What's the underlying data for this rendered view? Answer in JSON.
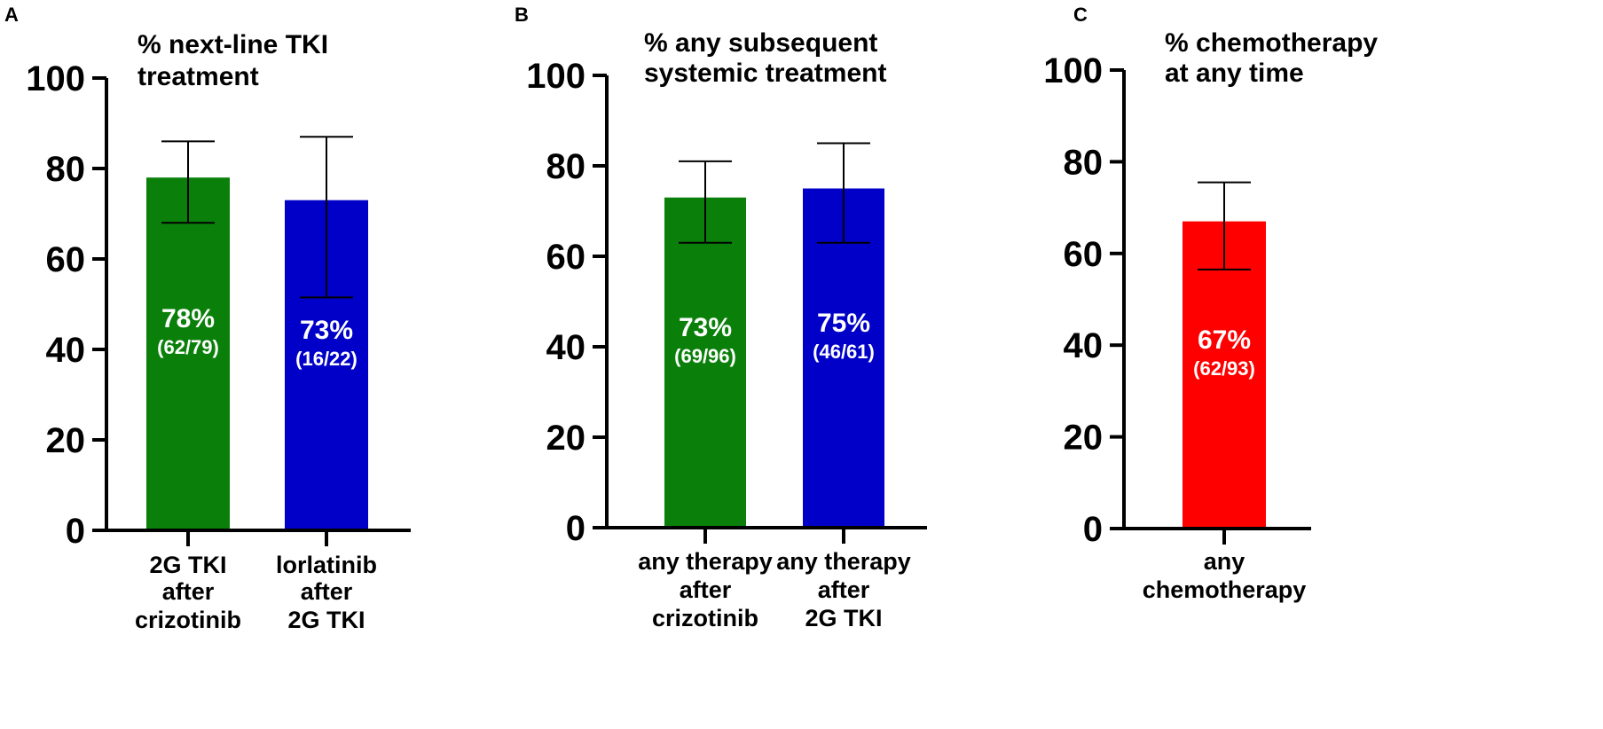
{
  "chart_data": [
    {
      "panel": "A",
      "type": "bar",
      "title": [
        "% next-line TKI",
        "treatment"
      ],
      "categories": [
        [
          "2G TKI",
          "after",
          "crizotinib"
        ],
        [
          "lorlatinib",
          "after",
          "2G TKI"
        ]
      ],
      "values": [
        78,
        73
      ],
      "error_low": [
        68,
        51.5
      ],
      "error_high": [
        86,
        87
      ],
      "bar_labels": [
        [
          "78%",
          "(62/79)"
        ],
        [
          "73%",
          "(16/22)"
        ]
      ],
      "colors": [
        "#0a800a",
        "#0000c8"
      ],
      "ylim": [
        0,
        100
      ],
      "yticks": [
        0,
        20,
        40,
        60,
        80,
        100
      ],
      "ytick_labels": [
        "0",
        "20",
        "40",
        "60",
        "80",
        "100"
      ],
      "xlabel": "",
      "ylabel": "",
      "grid": false
    },
    {
      "panel": "B",
      "type": "bar",
      "title": [
        "% any subsequent",
        "systemic treatment"
      ],
      "categories": [
        [
          "any therapy",
          "after",
          "crizotinib"
        ],
        [
          "any therapy",
          "after",
          "2G TKI"
        ]
      ],
      "values": [
        73,
        75
      ],
      "error_low": [
        63,
        63
      ],
      "error_high": [
        81,
        85
      ],
      "bar_labels": [
        [
          "73%",
          "(69/96)"
        ],
        [
          "75%",
          "(46/61)"
        ]
      ],
      "colors": [
        "#0a800a",
        "#0000c8"
      ],
      "ylim": [
        0,
        100
      ],
      "yticks": [
        0,
        20,
        40,
        60,
        80,
        100
      ],
      "ytick_labels": [
        "0",
        "20",
        "40",
        "60",
        "80",
        "100"
      ],
      "xlabel": "",
      "ylabel": "",
      "grid": false
    },
    {
      "panel": "C",
      "type": "bar",
      "title": [
        "% chemotherapy",
        "at any time"
      ],
      "categories": [
        [
          "any",
          "chemotherapy"
        ]
      ],
      "values": [
        67
      ],
      "error_low": [
        56.5
      ],
      "error_high": [
        75.5
      ],
      "bar_labels": [
        [
          "67%",
          "(62/93)"
        ]
      ],
      "colors": [
        "#ff0000"
      ],
      "ylim": [
        0,
        100
      ],
      "yticks": [
        0,
        20,
        40,
        60,
        80,
        100
      ],
      "ytick_labels": [
        "0",
        "20",
        "40",
        "60",
        "80",
        "100"
      ],
      "xlabel": "",
      "ylabel": "",
      "grid": false
    }
  ]
}
